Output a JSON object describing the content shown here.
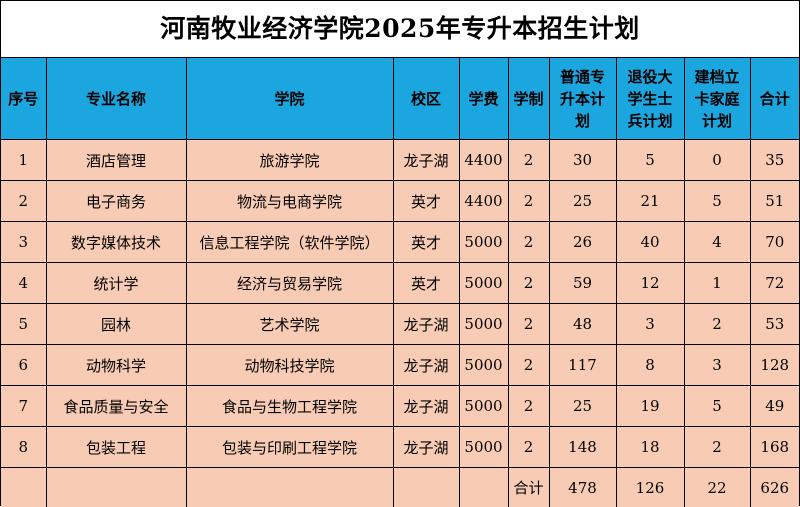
{
  "title": "河南牧业经济学院2025年专升本招生计划",
  "headers": [
    "序号",
    "专业名称",
    "学院",
    "校区",
    "学费",
    "学制",
    "普通专\n升本计\n划",
    "退役大\n学生士\n兵计划",
    "建档立\n卡家庭\n计划",
    "合计"
  ],
  "rows": [
    [
      "1",
      "酒店管理",
      "旅游学院",
      "龙子湖",
      "4400",
      "2",
      "30",
      "5",
      "0",
      "35"
    ],
    [
      "2",
      "电子商务",
      "物流与电商学院",
      "英才",
      "4400",
      "2",
      "25",
      "21",
      "5",
      "51"
    ],
    [
      "3",
      "数字媒体技术",
      "信息工程学院（软件学院）",
      "英才",
      "5000",
      "2",
      "26",
      "40",
      "4",
      "70"
    ],
    [
      "4",
      "统计学",
      "经济与贸易学院",
      "英才",
      "5000",
      "2",
      "59",
      "12",
      "1",
      "72"
    ],
    [
      "5",
      "园林",
      "艺术学院",
      "龙子湖",
      "5000",
      "2",
      "48",
      "3",
      "2",
      "53"
    ],
    [
      "6",
      "动物科学",
      "动物科技学院",
      "龙子湖",
      "5000",
      "2",
      "117",
      "8",
      "3",
      "128"
    ],
    [
      "7",
      "食品质量与安全",
      "食品与生物工程学院",
      "龙子湖",
      "5000",
      "2",
      "25",
      "19",
      "5",
      "49"
    ],
    [
      "8",
      "包装工程",
      "包装与印刷工程学院",
      "龙子湖",
      "5000",
      "2",
      "148",
      "18",
      "2",
      "168"
    ]
  ],
  "totals": {
    "label": "合计",
    "regular": "478",
    "veteran": "126",
    "poverty": "22",
    "total": "626"
  }
}
